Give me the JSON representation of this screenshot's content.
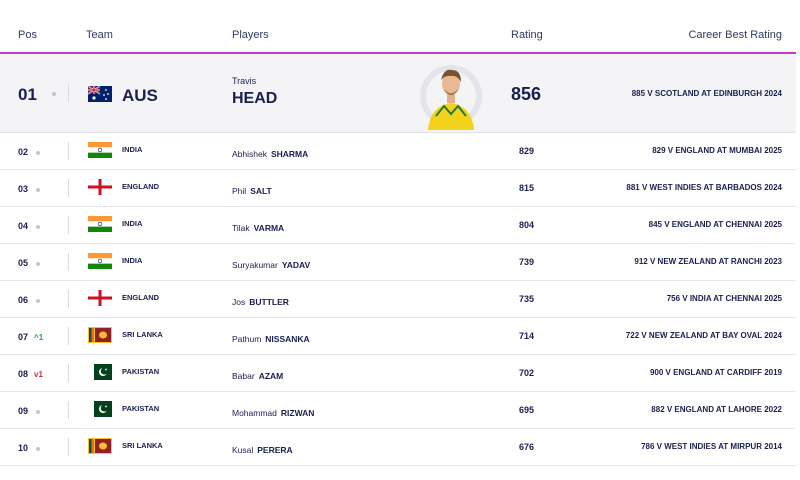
{
  "headers": {
    "pos": "Pos",
    "team": "Team",
    "players": "Players",
    "rating": "Rating",
    "best": "Career Best Rating"
  },
  "colors": {
    "accent": "#c63acb",
    "text": "#1a1f4d",
    "up": "#2ea043",
    "down": "#d7263d"
  },
  "leader": {
    "pos": "01",
    "team": "AUS",
    "flag": "australia-flag",
    "first": "Travis",
    "last": "HEAD",
    "rating": "856",
    "best": "885 V SCOTLAND AT EDINBURGH 2024"
  },
  "rows": [
    {
      "pos": "02",
      "move": "",
      "team": "INDIA",
      "flag": "india-flag",
      "first": "Abhishek",
      "last": "SHARMA",
      "rating": "829",
      "best": "829 V ENGLAND AT MUMBAI 2025"
    },
    {
      "pos": "03",
      "move": "",
      "team": "ENGLAND",
      "flag": "england-flag",
      "first": "Phil",
      "last": "SALT",
      "rating": "815",
      "best": "881 V WEST INDIES AT BARBADOS 2024"
    },
    {
      "pos": "04",
      "move": "",
      "team": "INDIA",
      "flag": "india-flag",
      "first": "Tilak",
      "last": "VARMA",
      "rating": "804",
      "best": "845 V ENGLAND AT CHENNAI 2025"
    },
    {
      "pos": "05",
      "move": "",
      "team": "INDIA",
      "flag": "india-flag",
      "first": "Suryakumar",
      "last": "YADAV",
      "rating": "739",
      "best": "912 V NEW ZEALAND AT RANCHI 2023"
    },
    {
      "pos": "06",
      "move": "",
      "team": "ENGLAND",
      "flag": "england-flag",
      "first": "Jos",
      "last": "BUTTLER",
      "rating": "735",
      "best": "756 V INDIA AT CHENNAI 2025"
    },
    {
      "pos": "07",
      "move": "1",
      "dir": "up",
      "team": "SRI LANKA",
      "flag": "sri-lanka-flag",
      "first": "Pathum",
      "last": "NISSANKA",
      "rating": "714",
      "best": "722 V NEW ZEALAND AT BAY OVAL 2024"
    },
    {
      "pos": "08",
      "move": "1",
      "dir": "down",
      "team": "PAKISTAN",
      "flag": "pakistan-flag",
      "first": "Babar",
      "last": "AZAM",
      "rating": "702",
      "best": "900 V ENGLAND AT CARDIFF 2019"
    },
    {
      "pos": "09",
      "move": "",
      "team": "PAKISTAN",
      "flag": "pakistan-flag",
      "first": "Mohammad",
      "last": "RIZWAN",
      "rating": "695",
      "best": "882 V ENGLAND AT LAHORE 2022"
    },
    {
      "pos": "10",
      "move": "",
      "team": "SRI LANKA",
      "flag": "sri-lanka-flag",
      "first": "Kusal",
      "last": "PERERA",
      "rating": "676",
      "best": "786 V WEST INDIES AT MIRPUR 2014"
    }
  ]
}
